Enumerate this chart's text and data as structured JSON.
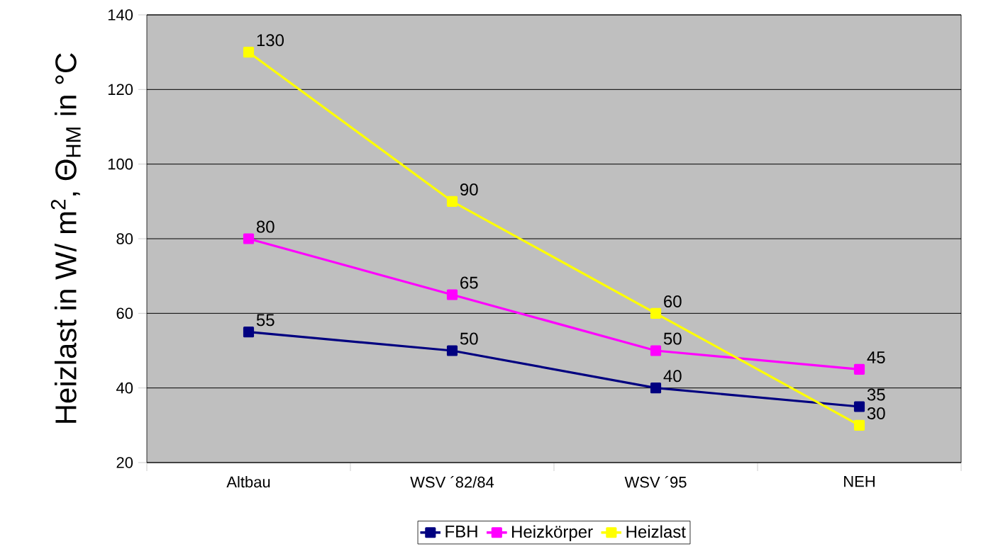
{
  "chart_data": {
    "type": "line",
    "ylabel": "Heizlast in W/ m$^{2}$, Θ$_{HM}$ in °C",
    "categories": [
      "Altbau",
      "WSV ´82/84",
      "WSV ´95",
      "NEH"
    ],
    "series": [
      {
        "name": "FBH",
        "color": "#000080",
        "values": [
          55,
          50,
          40,
          35
        ]
      },
      {
        "name": "Heizkörper",
        "color": "#ff00ff",
        "values": [
          80,
          65,
          50,
          45
        ]
      },
      {
        "name": "Heizlast",
        "color": "#ffff00",
        "values": [
          130,
          90,
          60,
          30
        ]
      }
    ],
    "ylim": [
      20,
      140
    ],
    "yticks": [
      20,
      40,
      60,
      80,
      100,
      120,
      140
    ],
    "grid": "y",
    "legend": "bottom",
    "marker": "square",
    "line_style": "solid",
    "data_labels": true
  }
}
